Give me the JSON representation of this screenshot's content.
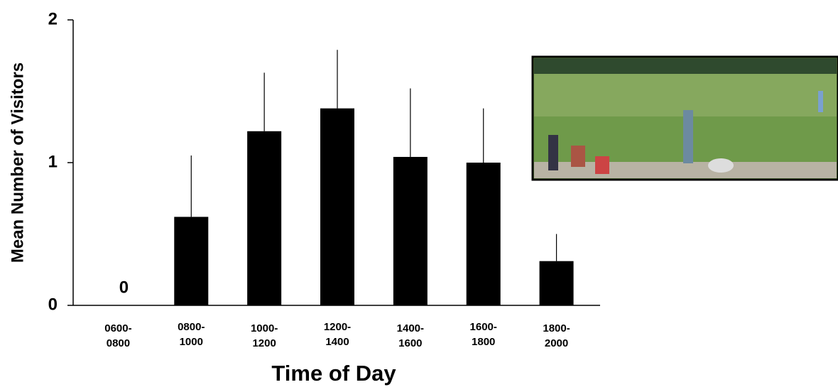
{
  "chart_data": {
    "type": "bar",
    "x_label": "Time of Day",
    "y_label": "Mean Number of Visitors",
    "categories": [
      "0600-\n0800",
      "0800-\n1000",
      "1000-\n1200",
      "1200-\n1400",
      "1400-\n1600",
      "1600-\n1800",
      "1800-\n2000"
    ],
    "values": [
      0,
      0.62,
      1.22,
      1.38,
      1.04,
      1.0,
      0.31
    ],
    "errors": [
      null,
      0.43,
      0.41,
      0.41,
      0.48,
      0.38,
      0.19
    ],
    "value_labels": [
      "0",
      null,
      null,
      null,
      null,
      null,
      null
    ],
    "color": "#000000",
    "ylim": [
      0,
      2
    ],
    "yticks": [
      0,
      1,
      2
    ],
    "grid": false
  }
}
